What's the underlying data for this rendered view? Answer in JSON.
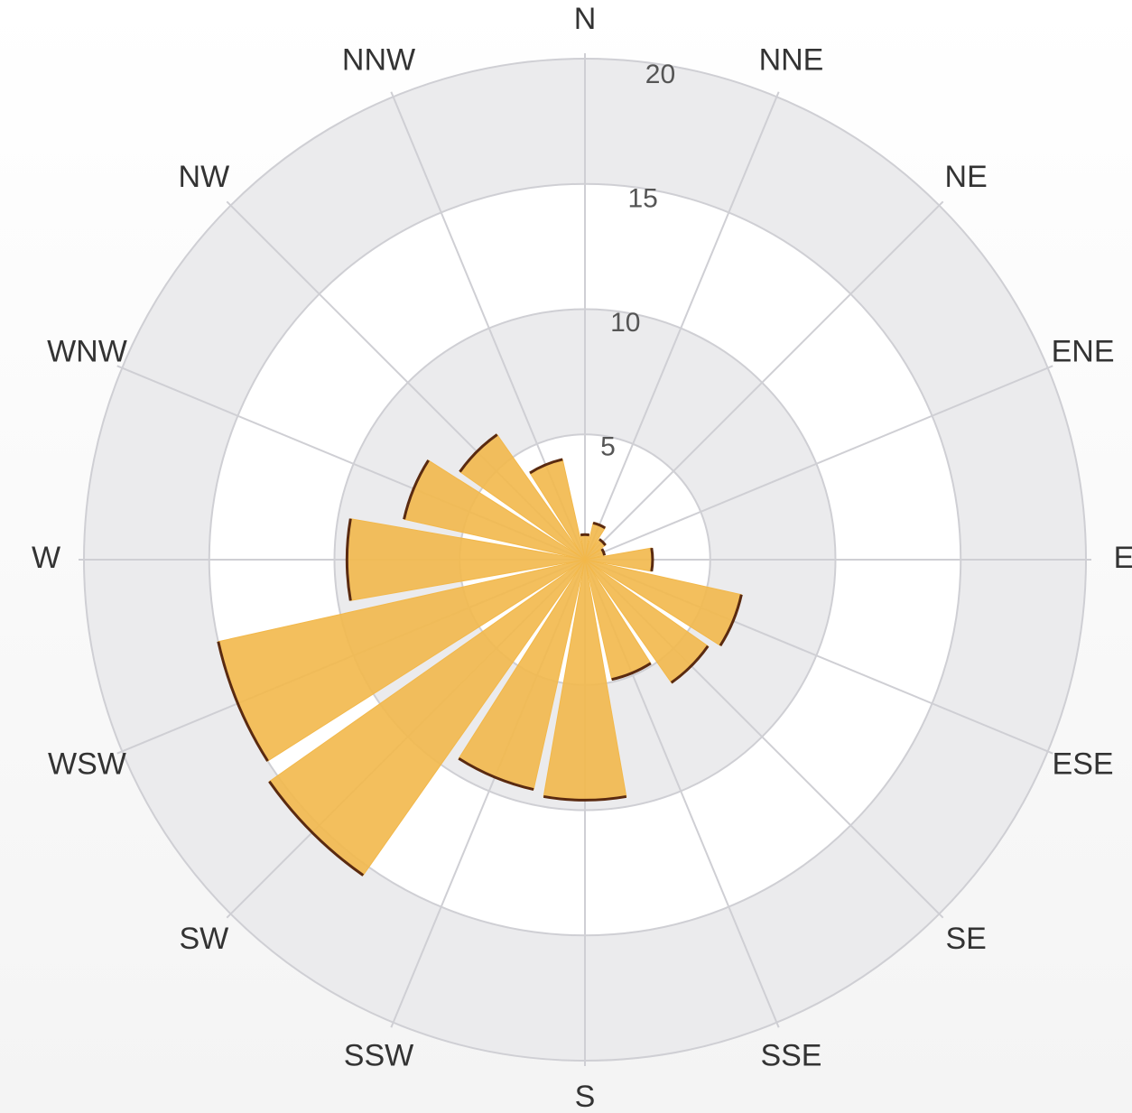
{
  "chart_data": {
    "type": "rose",
    "categories": [
      "N",
      "NNE",
      "NE",
      "ENE",
      "E",
      "ESE",
      "SE",
      "SSE",
      "S",
      "SSW",
      "SW",
      "WSW",
      "W",
      "WNW",
      "NW",
      "NNW"
    ],
    "values": [
      1,
      1.5,
      1,
      0.8,
      2.7,
      6.4,
      6,
      4.9,
      9.6,
      9.4,
      15.4,
      15,
      9.5,
      7.4,
      6.1,
      4.1
    ],
    "color": "#f2b84b",
    "edge_color": "#5a2a10",
    "ylim": [
      0,
      20
    ],
    "yticks": [
      5,
      10,
      15,
      20
    ],
    "grid": true
  }
}
